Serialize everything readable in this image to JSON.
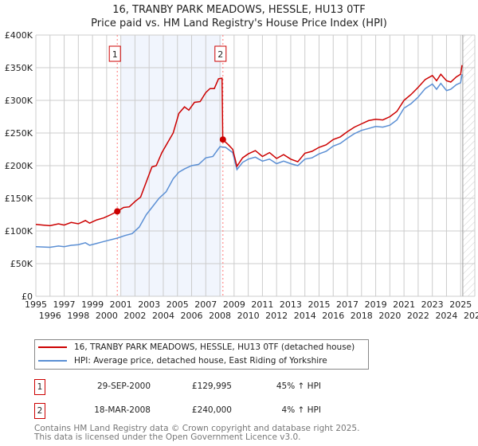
{
  "chart_data": {
    "type": "line",
    "title": "16, TRANBY PARK MEADOWS, HESSLE, HU13 0TF",
    "subtitle": "Price paid vs. HM Land Registry's House Price Index (HPI)",
    "xlim": [
      1995,
      2026
    ],
    "ylim": [
      0,
      400000
    ],
    "x_ticks": [
      "1995",
      "1996",
      "1997",
      "1998",
      "1999",
      "2000",
      "2001",
      "2002",
      "2003",
      "2004",
      "2005",
      "2006",
      "2007",
      "2008",
      "2009",
      "2010",
      "2011",
      "2012",
      "2013",
      "2014",
      "2015",
      "2016",
      "2017",
      "2018",
      "2019",
      "2020",
      "2021",
      "2022",
      "2023",
      "2024",
      "2025",
      "2026"
    ],
    "y_ticks": [
      {
        "v": 0,
        "label": "£0"
      },
      {
        "v": 50000,
        "label": "£50K"
      },
      {
        "v": 100000,
        "label": "£100K"
      },
      {
        "v": 150000,
        "label": "£150K"
      },
      {
        "v": 200000,
        "label": "£200K"
      },
      {
        "v": 250000,
        "label": "£250K"
      },
      {
        "v": 300000,
        "label": "£300K"
      },
      {
        "v": 350000,
        "label": "£350K"
      },
      {
        "v": 400000,
        "label": "£400K"
      }
    ],
    "grid": true,
    "shaded_range": [
      2001.0,
      2008.1
    ],
    "forecast_hatch_from": 2025.15,
    "series": [
      {
        "name": "16, TRANBY PARK MEADOWS, HESSLE, HU13 0TF (detached house)",
        "color": "#cc0000",
        "points": [
          [
            1995,
            110000
          ],
          [
            1995.5,
            109000
          ],
          [
            1996,
            108000
          ],
          [
            1996.6,
            111000
          ],
          [
            1997,
            109000
          ],
          [
            1997.5,
            113000
          ],
          [
            1998,
            111000
          ],
          [
            1998.5,
            116000
          ],
          [
            1998.8,
            112000
          ],
          [
            1999.3,
            117000
          ],
          [
            1999.8,
            120000
          ],
          [
            2000.3,
            125000
          ],
          [
            2000.75,
            129995
          ],
          [
            2001.2,
            136000
          ],
          [
            2001.6,
            137000
          ],
          [
            2002,
            145000
          ],
          [
            2002.4,
            152000
          ],
          [
            2002.8,
            175000
          ],
          [
            2003.2,
            198000
          ],
          [
            2003.5,
            200000
          ],
          [
            2003.9,
            220000
          ],
          [
            2004.3,
            235000
          ],
          [
            2004.7,
            250000
          ],
          [
            2005.1,
            280000
          ],
          [
            2005.5,
            290000
          ],
          [
            2005.8,
            285000
          ],
          [
            2006.2,
            297000
          ],
          [
            2006.6,
            298000
          ],
          [
            2007,
            312000
          ],
          [
            2007.3,
            318000
          ],
          [
            2007.6,
            318000
          ],
          [
            2007.9,
            333000
          ],
          [
            2008.15,
            334000
          ],
          [
            2008.2,
            240000
          ],
          [
            2008.6,
            232000
          ],
          [
            2008.9,
            225000
          ],
          [
            2009.2,
            199000
          ],
          [
            2009.6,
            212000
          ],
          [
            2010,
            218000
          ],
          [
            2010.5,
            223000
          ],
          [
            2011,
            214000
          ],
          [
            2011.5,
            220000
          ],
          [
            2012,
            211000
          ],
          [
            2012.5,
            217000
          ],
          [
            2013,
            210000
          ],
          [
            2013.5,
            206000
          ],
          [
            2014,
            219000
          ],
          [
            2014.5,
            222000
          ],
          [
            2015,
            228000
          ],
          [
            2015.5,
            232000
          ],
          [
            2016,
            240000
          ],
          [
            2016.5,
            244000
          ],
          [
            2017,
            252000
          ],
          [
            2017.5,
            259000
          ],
          [
            2018,
            264000
          ],
          [
            2018.5,
            269000
          ],
          [
            2019,
            271000
          ],
          [
            2019.5,
            270000
          ],
          [
            2020,
            275000
          ],
          [
            2020.5,
            283000
          ],
          [
            2021,
            300000
          ],
          [
            2021.5,
            309000
          ],
          [
            2022,
            320000
          ],
          [
            2022.5,
            332000
          ],
          [
            2023,
            338000
          ],
          [
            2023.3,
            330000
          ],
          [
            2023.6,
            340000
          ],
          [
            2024,
            330000
          ],
          [
            2024.3,
            328000
          ],
          [
            2024.7,
            336000
          ],
          [
            2025,
            340000
          ],
          [
            2025.1,
            354000
          ]
        ]
      },
      {
        "name": "HPI: Average price, detached house, East Riding of Yorkshire",
        "color": "#5b8fd4",
        "points": [
          [
            1995,
            76000
          ],
          [
            1996,
            75000
          ],
          [
            1996.6,
            77000
          ],
          [
            1997,
            76000
          ],
          [
            1997.5,
            78000
          ],
          [
            1998,
            79000
          ],
          [
            1998.5,
            82000
          ],
          [
            1998.8,
            78000
          ],
          [
            1999.3,
            81000
          ],
          [
            2000,
            85000
          ],
          [
            2000.75,
            89000
          ],
          [
            2001.3,
            93000
          ],
          [
            2001.8,
            96000
          ],
          [
            2002.3,
            106000
          ],
          [
            2002.8,
            125000
          ],
          [
            2003.2,
            136000
          ],
          [
            2003.7,
            150000
          ],
          [
            2004.2,
            160000
          ],
          [
            2004.7,
            180000
          ],
          [
            2005.1,
            190000
          ],
          [
            2005.5,
            195000
          ],
          [
            2006,
            200000
          ],
          [
            2006.5,
            202000
          ],
          [
            2007,
            212000
          ],
          [
            2007.5,
            214000
          ],
          [
            2008.0,
            229000
          ],
          [
            2008.4,
            228000
          ],
          [
            2008.9,
            220000
          ],
          [
            2009.2,
            194000
          ],
          [
            2009.6,
            205000
          ],
          [
            2010,
            210000
          ],
          [
            2010.5,
            213000
          ],
          [
            2011,
            207000
          ],
          [
            2011.5,
            210000
          ],
          [
            2012,
            203000
          ],
          [
            2012.5,
            207000
          ],
          [
            2013,
            203000
          ],
          [
            2013.5,
            200000
          ],
          [
            2014,
            210000
          ],
          [
            2014.5,
            212000
          ],
          [
            2015,
            218000
          ],
          [
            2015.5,
            222000
          ],
          [
            2016,
            230000
          ],
          [
            2016.5,
            234000
          ],
          [
            2017,
            242000
          ],
          [
            2017.5,
            249000
          ],
          [
            2018,
            254000
          ],
          [
            2018.5,
            257000
          ],
          [
            2019,
            260000
          ],
          [
            2019.5,
            259000
          ],
          [
            2020,
            262000
          ],
          [
            2020.5,
            270000
          ],
          [
            2021,
            288000
          ],
          [
            2021.5,
            295000
          ],
          [
            2022,
            305000
          ],
          [
            2022.5,
            318000
          ],
          [
            2023,
            325000
          ],
          [
            2023.3,
            317000
          ],
          [
            2023.6,
            326000
          ],
          [
            2024,
            315000
          ],
          [
            2024.3,
            317000
          ],
          [
            2024.7,
            324000
          ],
          [
            2025,
            327000
          ],
          [
            2025.1,
            340000
          ]
        ]
      }
    ],
    "sales": [
      {
        "n": "1",
        "x": 2000.75,
        "y": 129995,
        "date": "29-SEP-2000",
        "price": "£129,995",
        "hpi": "45% ↑ HPI"
      },
      {
        "n": "2",
        "x": 2008.21,
        "y": 240000,
        "date": "18-MAR-2008",
        "price": "£240,000",
        "hpi": "4% ↑ HPI"
      }
    ]
  },
  "footer": {
    "line1": "Contains HM Land Registry data © Crown copyright and database right 2025.",
    "line2": "This data is licensed under the Open Government Licence v3.0."
  }
}
